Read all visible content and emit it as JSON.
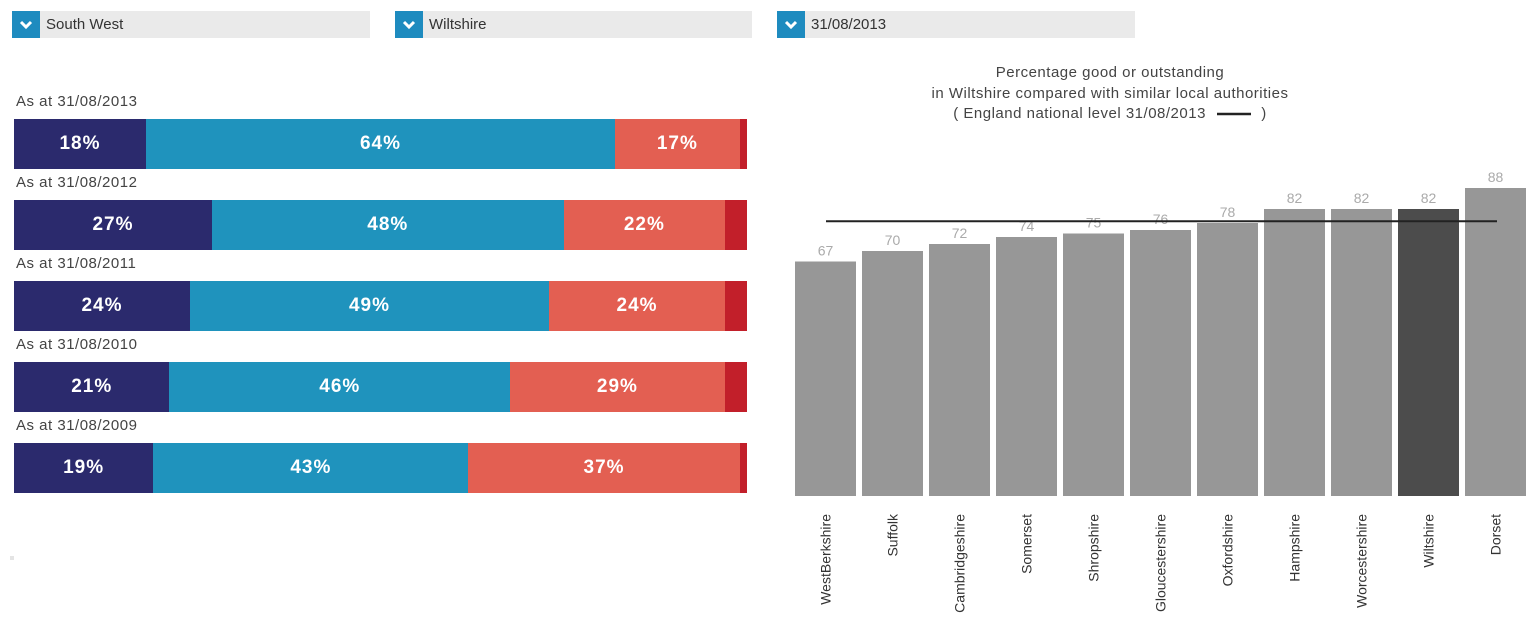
{
  "filters": [
    {
      "label": "South West"
    },
    {
      "label": "Wiltshire"
    },
    {
      "label": "31/08/2013"
    }
  ],
  "breakdown": {
    "colors": {
      "outstanding": "#2b2a6d",
      "good": "#1f93bd",
      "requires_improvement": "#e35f52",
      "inadequate": "#c21f2a"
    },
    "rows": [
      {
        "label": "As at 31/08/2013",
        "values": [
          18,
          64,
          17,
          1
        ],
        "display": [
          "18%",
          "64%",
          "17%",
          ""
        ]
      },
      {
        "label": "As at 31/08/2012",
        "values": [
          27,
          48,
          22,
          3
        ],
        "display": [
          "27%",
          "48%",
          "22%",
          ""
        ]
      },
      {
        "label": "As at 31/08/2011",
        "values": [
          24,
          49,
          24,
          3
        ],
        "display": [
          "24%",
          "49%",
          "24%",
          ""
        ]
      },
      {
        "label": "As at 31/08/2010",
        "values": [
          21,
          46,
          29,
          3
        ],
        "display": [
          "21%",
          "46%",
          "29%",
          ""
        ]
      },
      {
        "label": "As at 31/08/2009",
        "values": [
          19,
          43,
          37,
          1
        ],
        "display": [
          "19%",
          "43%",
          "37%",
          ""
        ]
      }
    ]
  },
  "chart": {
    "title_lines": [
      "Percentage good or outstanding",
      "in Wiltshire compared with similar local authorities",
      "( England national level 31/08/2013"
    ],
    "title_suffix": ")"
  },
  "chart_data": [
    {
      "type": "bar",
      "orientation": "horizontal-stacked",
      "categories": [
        "As at 31/08/2013",
        "As at 31/08/2012",
        "As at 31/08/2011",
        "As at 31/08/2010",
        "As at 31/08/2009"
      ],
      "series": [
        {
          "values": [
            18,
            27,
            24,
            21,
            19
          ],
          "color": "#2b2a6d"
        },
        {
          "values": [
            64,
            48,
            49,
            46,
            43
          ],
          "color": "#1f93bd"
        },
        {
          "values": [
            17,
            22,
            24,
            29,
            37
          ],
          "color": "#e35f52"
        },
        {
          "values": [
            1,
            3,
            3,
            3,
            1
          ],
          "color": "#c21f2a"
        }
      ],
      "xlim": [
        0,
        100
      ]
    },
    {
      "type": "bar",
      "title": "Percentage good or outstanding in Wiltshire compared with similar local authorities ( England national level 31/08/2013 )",
      "categories": [
        "WestBerkshire",
        "Suffolk",
        "Cambridgeshire",
        "Somerset",
        "Shropshire",
        "Gloucestershire",
        "Oxfordshire",
        "Hampshire",
        "Worcestershire",
        "Wiltshire",
        "Dorset"
      ],
      "values": [
        67,
        70,
        72,
        74,
        75,
        76,
        78,
        82,
        82,
        82,
        88
      ],
      "highlight": "Wiltshire",
      "colors": {
        "bar": "#979797",
        "highlight": "#4c4c4c",
        "value_label": "#aaaaaa",
        "reference_line": "#222222"
      },
      "reference_line": 78.5,
      "ylim": [
        0,
        90
      ]
    }
  ]
}
